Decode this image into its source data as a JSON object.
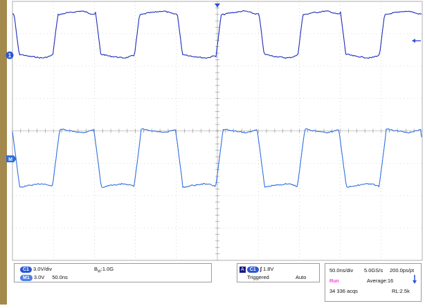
{
  "markers": {
    "ch1": "1",
    "math": "M"
  },
  "settings": {
    "ch1_badge": "C1",
    "ch1_scale": "3.0V/div",
    "bw": "1.0G",
    "bw_prefix": "B",
    "bw_sub": "W",
    "math_badge": "M1",
    "math_scale": "3.0V",
    "math_time": "50.0ns"
  },
  "trigger": {
    "icon_label": "A",
    "source_badge": "C1",
    "slope_glyph": "∫",
    "level": "1.8V",
    "status": "Triggered",
    "mode": "Auto"
  },
  "acquisition": {
    "timebase": "50.0ns/div",
    "sample_rate": "5.0GS/s",
    "resolution": "200.0ps/pt",
    "state": "Run",
    "average": "Average:16",
    "acqs": "34 336 acqs",
    "record_length": "RL:2.5k"
  },
  "colors": {
    "ch1": "#1a2cb8",
    "math": "#2f6fe0",
    "run": "#e000c8",
    "frame_left": "#a4894c"
  }
}
